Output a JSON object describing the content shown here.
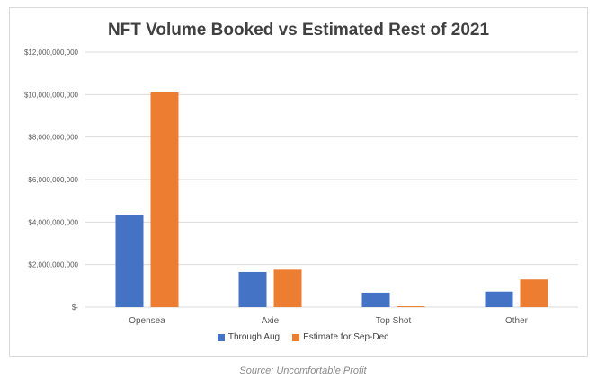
{
  "chart_data": {
    "type": "bar",
    "title": "NFT Volume Booked vs Estimated Rest of 2021",
    "categories": [
      "Opensea",
      "Axie",
      "Top Shot",
      "Other"
    ],
    "series": [
      {
        "name": "Through Aug",
        "color": "#4472c4",
        "values": [
          4350000000,
          1650000000,
          680000000,
          730000000
        ]
      },
      {
        "name": "Estimate for Sep-Dec",
        "color": "#ed7d31",
        "values": [
          10100000000,
          1760000000,
          40000000,
          1300000000
        ]
      }
    ],
    "ylim": [
      0,
      12000000000
    ],
    "yticks": [
      0,
      2000000000,
      4000000000,
      6000000000,
      8000000000,
      10000000000,
      12000000000
    ],
    "ytick_labels": [
      "$-",
      "$2,000,000,000",
      "$4,000,000,000",
      "$6,000,000,000",
      "$8,000,000,000",
      "$10,000,000,000",
      "$12,000,000,000"
    ],
    "grid": true,
    "legend_position": "bottom"
  },
  "source": "Source: Uncomfortable Profit"
}
